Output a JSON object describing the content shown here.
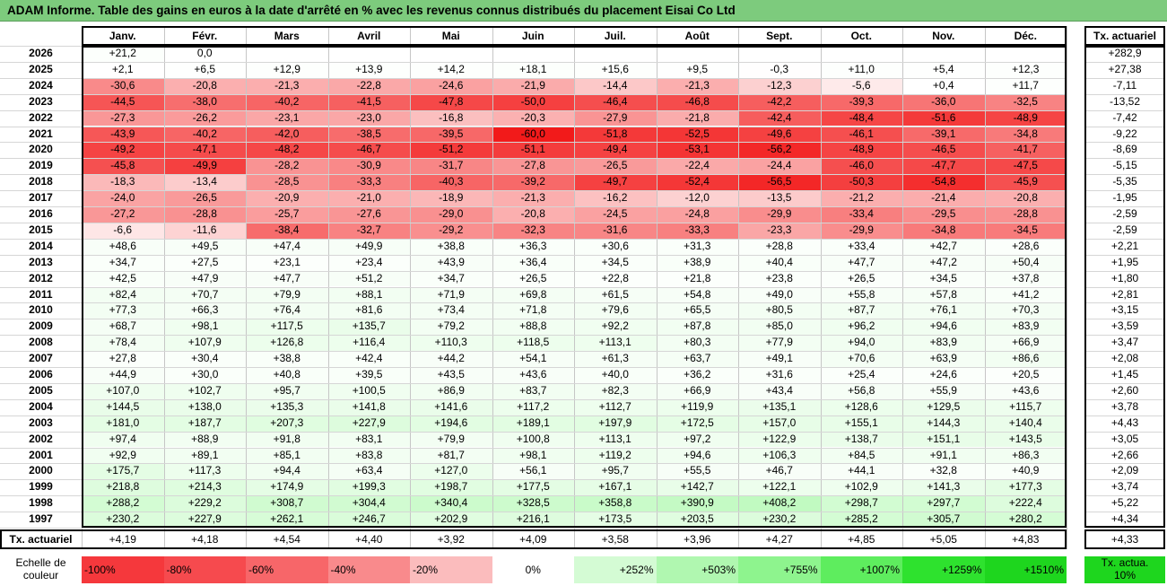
{
  "title": "ADAM Informe. Table des gains en euros à la date d'arrêté en % avec les revenus connus distribués du placement Eisai Co Ltd",
  "chart_data": {
    "type": "table",
    "months": [
      "Janv.",
      "Févr.",
      "Mars",
      "Avril",
      "Mai",
      "Juin",
      "Juil.",
      "Août",
      "Sept.",
      "Oct.",
      "Nov.",
      "Déc."
    ],
    "rate_header": "Tx. actuariel",
    "rows": [
      {
        "year": "2026",
        "values": [
          "+21,2",
          "0,0",
          "",
          "",
          "",
          "",
          "",
          "",
          "",
          "",
          "",
          ""
        ],
        "rate": "+282,9"
      },
      {
        "year": "2025",
        "values": [
          "+2,1",
          "+6,5",
          "+12,9",
          "+13,9",
          "+14,2",
          "+18,1",
          "+15,6",
          "+9,5",
          "-0,3",
          "+11,0",
          "+5,4",
          "+12,3"
        ],
        "rate": "+27,38"
      },
      {
        "year": "2024",
        "values": [
          "-30,6",
          "-20,8",
          "-21,3",
          "-22,8",
          "-24,6",
          "-21,9",
          "-14,4",
          "-21,3",
          "-12,3",
          "-5,6",
          "+0,4",
          "+11,7"
        ],
        "rate": "-7,11"
      },
      {
        "year": "2023",
        "values": [
          "-44,5",
          "-38,0",
          "-40,2",
          "-41,5",
          "-47,8",
          "-50,0",
          "-46,4",
          "-46,8",
          "-42,2",
          "-39,3",
          "-36,0",
          "-32,5"
        ],
        "rate": "-13,52"
      },
      {
        "year": "2022",
        "values": [
          "-27,3",
          "-26,2",
          "-23,1",
          "-23,0",
          "-16,8",
          "-20,3",
          "-27,9",
          "-21,8",
          "-42,4",
          "-48,4",
          "-51,6",
          "-48,9"
        ],
        "rate": "-7,42"
      },
      {
        "year": "2021",
        "values": [
          "-43,9",
          "-40,2",
          "-42,0",
          "-38,5",
          "-39,5",
          "-60,0",
          "-51,8",
          "-52,5",
          "-49,6",
          "-46,1",
          "-39,1",
          "-34,8"
        ],
        "rate": "-9,22"
      },
      {
        "year": "2020",
        "values": [
          "-49,2",
          "-47,1",
          "-48,2",
          "-46,7",
          "-51,2",
          "-51,1",
          "-49,4",
          "-53,1",
          "-56,2",
          "-48,9",
          "-46,5",
          "-41,7"
        ],
        "rate": "-8,69"
      },
      {
        "year": "2019",
        "values": [
          "-45,8",
          "-49,9",
          "-28,2",
          "-30,9",
          "-31,7",
          "-27,8",
          "-26,5",
          "-22,4",
          "-24,4",
          "-46,0",
          "-47,7",
          "-47,5"
        ],
        "rate": "-5,15"
      },
      {
        "year": "2018",
        "values": [
          "-18,3",
          "-13,4",
          "-28,5",
          "-33,3",
          "-40,3",
          "-39,2",
          "-49,7",
          "-52,4",
          "-56,5",
          "-50,3",
          "-54,8",
          "-45,9"
        ],
        "rate": "-5,35"
      },
      {
        "year": "2017",
        "values": [
          "-24,0",
          "-26,5",
          "-20,9",
          "-21,0",
          "-18,9",
          "-21,3",
          "-16,2",
          "-12,0",
          "-13,5",
          "-21,2",
          "-21,4",
          "-20,8"
        ],
        "rate": "-1,95"
      },
      {
        "year": "2016",
        "values": [
          "-27,2",
          "-28,8",
          "-25,7",
          "-27,6",
          "-29,0",
          "-20,8",
          "-24,5",
          "-24,8",
          "-29,9",
          "-33,4",
          "-29,5",
          "-28,8"
        ],
        "rate": "-2,59"
      },
      {
        "year": "2015",
        "values": [
          "-6,6",
          "-11,6",
          "-38,4",
          "-32,7",
          "-29,2",
          "-32,3",
          "-31,6",
          "-33,3",
          "-23,3",
          "-29,9",
          "-34,8",
          "-34,5"
        ],
        "rate": "-2,59"
      },
      {
        "year": "2014",
        "values": [
          "+48,6",
          "+49,5",
          "+47,4",
          "+49,9",
          "+38,8",
          "+36,3",
          "+30,6",
          "+31,3",
          "+28,8",
          "+33,4",
          "+42,7",
          "+28,6"
        ],
        "rate": "+2,21"
      },
      {
        "year": "2013",
        "values": [
          "+34,7",
          "+27,5",
          "+23,1",
          "+23,4",
          "+43,9",
          "+36,4",
          "+34,5",
          "+38,9",
          "+40,4",
          "+47,7",
          "+47,2",
          "+50,4"
        ],
        "rate": "+1,95"
      },
      {
        "year": "2012",
        "values": [
          "+42,5",
          "+47,9",
          "+47,7",
          "+51,2",
          "+34,7",
          "+26,5",
          "+22,8",
          "+21,8",
          "+23,8",
          "+26,5",
          "+34,5",
          "+37,8"
        ],
        "rate": "+1,80"
      },
      {
        "year": "2011",
        "values": [
          "+82,4",
          "+70,7",
          "+79,9",
          "+88,1",
          "+71,9",
          "+69,8",
          "+61,5",
          "+54,8",
          "+49,0",
          "+55,8",
          "+57,8",
          "+41,2"
        ],
        "rate": "+2,81"
      },
      {
        "year": "2010",
        "values": [
          "+77,3",
          "+66,3",
          "+76,4",
          "+81,6",
          "+73,4",
          "+71,8",
          "+79,6",
          "+65,5",
          "+80,5",
          "+87,7",
          "+76,1",
          "+70,3"
        ],
        "rate": "+3,15"
      },
      {
        "year": "2009",
        "values": [
          "+68,7",
          "+98,1",
          "+117,5",
          "+135,7",
          "+79,2",
          "+88,8",
          "+92,2",
          "+87,8",
          "+85,0",
          "+96,2",
          "+94,6",
          "+83,9"
        ],
        "rate": "+3,59"
      },
      {
        "year": "2008",
        "values": [
          "+78,4",
          "+107,9",
          "+126,8",
          "+116,4",
          "+110,3",
          "+118,5",
          "+113,1",
          "+80,3",
          "+77,9",
          "+94,0",
          "+83,9",
          "+66,9"
        ],
        "rate": "+3,47"
      },
      {
        "year": "2007",
        "values": [
          "+27,8",
          "+30,4",
          "+38,8",
          "+42,4",
          "+44,2",
          "+54,1",
          "+61,3",
          "+63,7",
          "+49,1",
          "+70,6",
          "+63,9",
          "+86,6"
        ],
        "rate": "+2,08"
      },
      {
        "year": "2006",
        "values": [
          "+44,9",
          "+30,0",
          "+40,8",
          "+39,5",
          "+43,5",
          "+43,6",
          "+40,0",
          "+36,2",
          "+31,6",
          "+25,4",
          "+24,6",
          "+20,5"
        ],
        "rate": "+1,45"
      },
      {
        "year": "2005",
        "values": [
          "+107,0",
          "+102,7",
          "+95,7",
          "+100,5",
          "+86,9",
          "+83,7",
          "+82,3",
          "+66,9",
          "+43,4",
          "+56,8",
          "+55,9",
          "+43,6"
        ],
        "rate": "+2,60"
      },
      {
        "year": "2004",
        "values": [
          "+144,5",
          "+138,0",
          "+135,3",
          "+141,8",
          "+141,6",
          "+117,2",
          "+112,7",
          "+119,9",
          "+135,1",
          "+128,6",
          "+129,5",
          "+115,7"
        ],
        "rate": "+3,78"
      },
      {
        "year": "2003",
        "values": [
          "+181,0",
          "+187,7",
          "+207,3",
          "+227,9",
          "+194,6",
          "+189,1",
          "+197,9",
          "+172,5",
          "+157,0",
          "+155,1",
          "+144,3",
          "+140,4"
        ],
        "rate": "+4,43"
      },
      {
        "year": "2002",
        "values": [
          "+97,4",
          "+88,9",
          "+91,8",
          "+83,1",
          "+79,9",
          "+100,8",
          "+113,1",
          "+97,2",
          "+122,9",
          "+138,7",
          "+151,1",
          "+143,5"
        ],
        "rate": "+3,05"
      },
      {
        "year": "2001",
        "values": [
          "+92,9",
          "+89,1",
          "+85,1",
          "+83,8",
          "+81,7",
          "+98,1",
          "+119,2",
          "+94,6",
          "+106,3",
          "+84,5",
          "+91,1",
          "+86,3"
        ],
        "rate": "+2,66"
      },
      {
        "year": "2000",
        "values": [
          "+175,7",
          "+117,3",
          "+94,4",
          "+63,4",
          "+127,0",
          "+56,1",
          "+95,7",
          "+55,5",
          "+46,7",
          "+44,1",
          "+32,8",
          "+40,9"
        ],
        "rate": "+2,09"
      },
      {
        "year": "1999",
        "values": [
          "+218,8",
          "+214,3",
          "+174,9",
          "+199,3",
          "+198,7",
          "+177,5",
          "+167,1",
          "+142,7",
          "+122,1",
          "+102,9",
          "+141,3",
          "+177,3"
        ],
        "rate": "+3,74"
      },
      {
        "year": "1998",
        "values": [
          "+288,2",
          "+229,2",
          "+308,7",
          "+304,4",
          "+340,4",
          "+328,5",
          "+358,8",
          "+390,9",
          "+408,2",
          "+298,7",
          "+297,7",
          "+222,4"
        ],
        "rate": "+5,22"
      },
      {
        "year": "1997",
        "values": [
          "+230,2",
          "+227,9",
          "+262,1",
          "+246,7",
          "+202,9",
          "+216,1",
          "+173,5",
          "+203,5",
          "+230,2",
          "+285,2",
          "+305,7",
          "+280,2"
        ],
        "rate": "+4,34"
      }
    ],
    "summary": {
      "label": "Tx. actuariel",
      "values": [
        "+4,19",
        "+4,18",
        "+4,54",
        "+4,40",
        "+3,92",
        "+4,09",
        "+3,58",
        "+3,96",
        "+4,27",
        "+4,85",
        "+5,05",
        "+4,83"
      ],
      "rate": "+4,33"
    },
    "scale": {
      "label": "Echelle de couleur",
      "items": [
        {
          "text": "-100%",
          "color": "#f5383c",
          "align": "left"
        },
        {
          "text": "-80%",
          "color": "#f64a4e",
          "align": "left"
        },
        {
          "text": "-60%",
          "color": "#f76669",
          "align": "left"
        },
        {
          "text": "-40%",
          "color": "#f98a8c",
          "align": "left"
        },
        {
          "text": "-20%",
          "color": "#fbbcbd",
          "align": "left"
        },
        {
          "text": "0%",
          "color": "#ffffff",
          "align": "center"
        },
        {
          "text": "+252%",
          "color": "#d4fbd4",
          "align": "right"
        },
        {
          "text": "+503%",
          "color": "#b0f7b0",
          "align": "right"
        },
        {
          "text": "+755%",
          "color": "#8ef48e",
          "align": "right"
        },
        {
          "text": "+1007%",
          "color": "#5eed5e",
          "align": "right"
        },
        {
          "text": "+1259%",
          "color": "#2ee22e",
          "align": "right"
        },
        {
          "text": "+1510%",
          "color": "#1ed61e",
          "align": "right"
        }
      ],
      "rate_label": "Tx. actua. 10%",
      "rate_color": "#1ed61e"
    }
  }
}
